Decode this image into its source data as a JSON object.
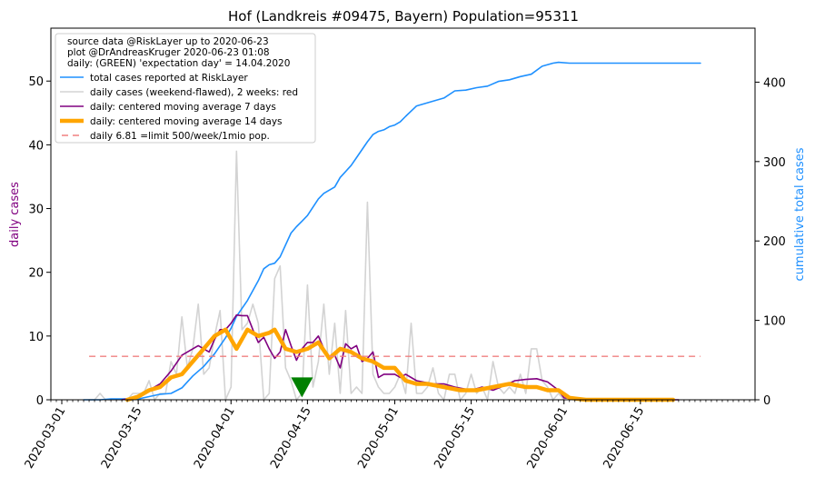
{
  "chart_data": {
    "type": "line",
    "title": "Hof (Landkreis #09475, Bayern) Population=95311",
    "ylabel_left": "daily cases",
    "ylabel_right": "cumulative total cases",
    "ylabel_left_color": "#800080",
    "ylabel_right_color": "#1e90ff",
    "x_type": "date",
    "xlim": [
      "2020-02-28",
      "2020-07-06"
    ],
    "xticks": [
      "2020-03-01",
      "2020-03-15",
      "2020-04-01",
      "2020-04-15",
      "2020-05-01",
      "2020-05-15",
      "2020-06-01",
      "2020-06-15"
    ],
    "ylim_left": [
      0,
      58.3
    ],
    "yticks_left": [
      0,
      10,
      20,
      30,
      40,
      50
    ],
    "ylim_right": [
      0,
      468
    ],
    "yticks_right": [
      0,
      100,
      200,
      300,
      400
    ],
    "grid": false,
    "legend_position": "top-left",
    "legend_header": [
      "source data @RiskLayer up to 2020-06-23",
      "plot @DrAndreasKruger 2020-06-23 01:08",
      "daily: (GREEN) 'expectation day' = 14.04.2020"
    ],
    "series": [
      {
        "name": "total cases reported at RiskLayer",
        "axis": "right",
        "color": "#1e90ff",
        "width": 1.6,
        "x": [
          "2020-03-05",
          "2020-03-08",
          "2020-03-10",
          "2020-03-13",
          "2020-03-15",
          "2020-03-17",
          "2020-03-19",
          "2020-03-21",
          "2020-03-23",
          "2020-03-25",
          "2020-03-27",
          "2020-03-29",
          "2020-03-31",
          "2020-04-01",
          "2020-04-02",
          "2020-04-04",
          "2020-04-06",
          "2020-04-07",
          "2020-04-08",
          "2020-04-09",
          "2020-04-10",
          "2020-04-12",
          "2020-04-13",
          "2020-04-14",
          "2020-04-15",
          "2020-04-17",
          "2020-04-18",
          "2020-04-20",
          "2020-04-21",
          "2020-04-23",
          "2020-04-24",
          "2020-04-26",
          "2020-04-27",
          "2020-04-28",
          "2020-04-29",
          "2020-04-30",
          "2020-05-01",
          "2020-05-02",
          "2020-05-03",
          "2020-05-05",
          "2020-05-06",
          "2020-05-08",
          "2020-05-10",
          "2020-05-12",
          "2020-05-14",
          "2020-05-16",
          "2020-05-18",
          "2020-05-20",
          "2020-05-22",
          "2020-05-24",
          "2020-05-26",
          "2020-05-28",
          "2020-05-30",
          "2020-05-31",
          "2020-06-02",
          "2020-06-05",
          "2020-06-10",
          "2020-06-26"
        ],
        "values": [
          0,
          0,
          1,
          1,
          1,
          4,
          7,
          8,
          15,
          30,
          42,
          58,
          78,
          90,
          105,
          125,
          150,
          165,
          170,
          172,
          180,
          210,
          218,
          225,
          232,
          253,
          260,
          268,
          280,
          295,
          305,
          325,
          334,
          338,
          340,
          344,
          346,
          350,
          357,
          370,
          372,
          376,
          380,
          389,
          390,
          393,
          395,
          401,
          403,
          407,
          410,
          420,
          424,
          425,
          424,
          424,
          424,
          424
        ]
      },
      {
        "name": "daily cases (weekend-flawed), 2 weeks: red",
        "axis": "left",
        "color": "#d3d3d3",
        "width": 1.6,
        "x": [
          "2020-03-06",
          "2020-03-07",
          "2020-03-08",
          "2020-03-09",
          "2020-03-10",
          "2020-03-11",
          "2020-03-12",
          "2020-03-13",
          "2020-03-14",
          "2020-03-15",
          "2020-03-16",
          "2020-03-17",
          "2020-03-18",
          "2020-03-19",
          "2020-03-20",
          "2020-03-21",
          "2020-03-22",
          "2020-03-23",
          "2020-03-24",
          "2020-03-25",
          "2020-03-26",
          "2020-03-27",
          "2020-03-28",
          "2020-03-29",
          "2020-03-30",
          "2020-03-31",
          "2020-04-01",
          "2020-04-02",
          "2020-04-03",
          "2020-04-04",
          "2020-04-05",
          "2020-04-06",
          "2020-04-07",
          "2020-04-08",
          "2020-04-09",
          "2020-04-10",
          "2020-04-11",
          "2020-04-12",
          "2020-04-13",
          "2020-04-14",
          "2020-04-15",
          "2020-04-16",
          "2020-04-17",
          "2020-04-18",
          "2020-04-19",
          "2020-04-20",
          "2020-04-21",
          "2020-04-22",
          "2020-04-23",
          "2020-04-24",
          "2020-04-25",
          "2020-04-26",
          "2020-04-27",
          "2020-04-28",
          "2020-04-29",
          "2020-04-30",
          "2020-05-01",
          "2020-05-02",
          "2020-05-03",
          "2020-05-04",
          "2020-05-05",
          "2020-05-06",
          "2020-05-07",
          "2020-05-08",
          "2020-05-09",
          "2020-05-10",
          "2020-05-11",
          "2020-05-12",
          "2020-05-13",
          "2020-05-14",
          "2020-05-15",
          "2020-05-16",
          "2020-05-17",
          "2020-05-18",
          "2020-05-19",
          "2020-05-20",
          "2020-05-21",
          "2020-05-22",
          "2020-05-23",
          "2020-05-24",
          "2020-05-25",
          "2020-05-26",
          "2020-05-27",
          "2020-05-28",
          "2020-05-29",
          "2020-05-30",
          "2020-05-31",
          "2020-06-01"
        ],
        "values": [
          0,
          0,
          1,
          0,
          0,
          0,
          0,
          0,
          1,
          1,
          1,
          3,
          0,
          1,
          1,
          6,
          4,
          13,
          5,
          8,
          15,
          4,
          5,
          10,
          14,
          0,
          2,
          39,
          11,
          12,
          15,
          12,
          0,
          1,
          19,
          21,
          5,
          3,
          0,
          1,
          18,
          2,
          6,
          15,
          4,
          12,
          1,
          14,
          1,
          2,
          1,
          31,
          4,
          2,
          1,
          1,
          2,
          4,
          1,
          12,
          1,
          1,
          2,
          5,
          1,
          0,
          4,
          4,
          0,
          1,
          4,
          1,
          2,
          0,
          6,
          2,
          1,
          2,
          1,
          4,
          1,
          8,
          8,
          3,
          2,
          0,
          1,
          0
        ]
      },
      {
        "name": "daily: centered moving average 7 days",
        "axis": "left",
        "color": "#800080",
        "width": 1.6,
        "x": [
          "2020-03-12",
          "2020-03-15",
          "2020-03-17",
          "2020-03-19",
          "2020-03-21",
          "2020-03-23",
          "2020-03-24",
          "2020-03-25",
          "2020-03-26",
          "2020-03-27",
          "2020-03-28",
          "2020-03-29",
          "2020-03-30",
          "2020-03-31",
          "2020-04-01",
          "2020-04-02",
          "2020-04-03",
          "2020-04-04",
          "2020-04-05",
          "2020-04-06",
          "2020-04-07",
          "2020-04-08",
          "2020-04-09",
          "2020-04-10",
          "2020-04-11",
          "2020-04-12",
          "2020-04-13",
          "2020-04-14",
          "2020-04-15",
          "2020-04-16",
          "2020-04-17",
          "2020-04-18",
          "2020-04-19",
          "2020-04-20",
          "2020-04-21",
          "2020-04-22",
          "2020-04-23",
          "2020-04-24",
          "2020-04-25",
          "2020-04-26",
          "2020-04-27",
          "2020-04-28",
          "2020-04-29",
          "2020-04-30",
          "2020-05-01",
          "2020-05-02",
          "2020-05-03",
          "2020-05-05",
          "2020-05-08",
          "2020-05-10",
          "2020-05-12",
          "2020-05-15",
          "2020-05-17",
          "2020-05-19",
          "2020-05-21",
          "2020-05-23",
          "2020-05-25",
          "2020-05-27",
          "2020-05-29",
          "2020-05-31",
          "2020-06-01",
          "2020-06-03",
          "2020-06-05",
          "2020-06-10",
          "2020-06-15",
          "2020-06-22"
        ],
        "values": [
          0,
          0.5,
          1.5,
          2.5,
          4.5,
          7,
          7.5,
          8,
          8.5,
          8,
          7.5,
          9.5,
          11,
          11,
          12,
          13.3,
          13.2,
          13.2,
          11,
          9,
          9.8,
          8,
          6.5,
          7.5,
          11,
          8.5,
          6.2,
          8,
          9,
          9,
          10,
          8,
          6.5,
          7,
          5,
          8.8,
          8,
          8.5,
          6,
          6.5,
          7.5,
          3.5,
          4,
          4,
          4,
          3.5,
          4,
          3,
          2.5,
          2.5,
          2,
          1.5,
          2,
          1.5,
          2.2,
          3,
          3.2,
          3.3,
          2.8,
          1.5,
          0.3,
          0.2,
          0,
          0,
          0,
          0
        ]
      },
      {
        "name": "daily: centered moving average 14 days",
        "axis": "left",
        "color": "#ffa500",
        "width": 4.5,
        "x": [
          "2020-03-13",
          "2020-03-15",
          "2020-03-17",
          "2020-03-19",
          "2020-03-21",
          "2020-03-23",
          "2020-03-25",
          "2020-03-27",
          "2020-03-29",
          "2020-03-31",
          "2020-04-02",
          "2020-04-04",
          "2020-04-06",
          "2020-04-08",
          "2020-04-09",
          "2020-04-11",
          "2020-04-13",
          "2020-04-15",
          "2020-04-17",
          "2020-04-19",
          "2020-04-21",
          "2020-04-23",
          "2020-04-25",
          "2020-04-27",
          "2020-04-29",
          "2020-05-01",
          "2020-05-03",
          "2020-05-05",
          "2020-05-07",
          "2020-05-10",
          "2020-05-13",
          "2020-05-16",
          "2020-05-19",
          "2020-05-22",
          "2020-05-25",
          "2020-05-27",
          "2020-05-29",
          "2020-05-31",
          "2020-06-02",
          "2020-06-05",
          "2020-06-10",
          "2020-06-15",
          "2020-06-21"
        ],
        "values": [
          0,
          0.5,
          1.5,
          2,
          3.5,
          4,
          6,
          8,
          10,
          11,
          8,
          11,
          10,
          10.5,
          11,
          8,
          7.5,
          8,
          9,
          6.5,
          8,
          7.5,
          6.5,
          6,
          5,
          5,
          3,
          2.5,
          2.5,
          2,
          1.5,
          1.5,
          2,
          2.5,
          2,
          2,
          1.5,
          1.5,
          0.3,
          0,
          0,
          0,
          0
        ]
      },
      {
        "name": "daily 6.81 =limit 500/week/1mio pop.",
        "axis": "left",
        "color": "#f08080",
        "width": 1.4,
        "dashed": true,
        "x": [
          "2020-03-06",
          "2020-06-26"
        ],
        "values": [
          6.81,
          6.81
        ]
      }
    ],
    "markers": [
      {
        "name": "expectation day",
        "x": "2020-04-14",
        "y": 1.8,
        "shape": "triangle-down",
        "color": "#008000"
      }
    ]
  }
}
